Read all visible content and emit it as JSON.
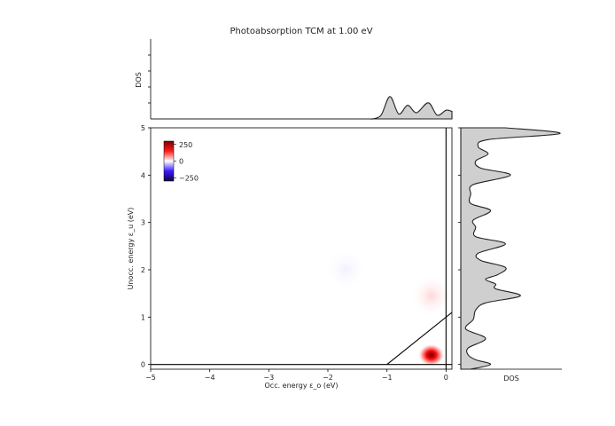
{
  "chart_data": {
    "type": "heatmap",
    "title": "Photoabsorption TCM at 1.00 eV",
    "xlabel": "Occ. energy ε_o (eV)",
    "ylabel": "Unocc. energy ε_u (eV)",
    "xlim": [
      -5,
      0.1
    ],
    "ylim": [
      -0.1,
      5.0
    ],
    "x_ticks": [
      "−5",
      "−4",
      "−3",
      "−2",
      "−1",
      "0"
    ],
    "y_ticks": [
      "0",
      "1",
      "2",
      "3",
      "4",
      "5"
    ],
    "x_tick_values": [
      -5,
      -4,
      -3,
      -2,
      -1,
      0
    ],
    "y_tick_values": [
      0,
      1,
      2,
      3,
      4,
      5
    ],
    "colorbar": {
      "ticks": [
        "250",
        "0",
        "−250"
      ],
      "values": [
        250,
        0,
        -250
      ]
    },
    "peaks": [
      {
        "x": -0.25,
        "y": 0.2,
        "value": 300
      },
      {
        "x": -0.25,
        "y": 1.45,
        "value": 20
      },
      {
        "x": -1.7,
        "y": 2.0,
        "value": -8
      }
    ],
    "fermi_level": 0.0,
    "transition_energy_line": 1.0,
    "top_panel": {
      "ylabel": "DOS",
      "occupied_dos": [
        [
          -1.25,
          0.0
        ],
        [
          -1.1,
          0.15
        ],
        [
          -0.95,
          0.9
        ],
        [
          -0.8,
          0.2
        ],
        [
          -0.65,
          0.55
        ],
        [
          -0.5,
          0.25
        ],
        [
          -0.3,
          0.65
        ],
        [
          -0.15,
          0.15
        ],
        [
          0.0,
          0.35
        ],
        [
          0.1,
          0.3
        ]
      ]
    },
    "right_panel": {
      "xlabel": "DOS",
      "unoccupied_dos": [
        [
          -0.1,
          0.2
        ],
        [
          0.0,
          0.6
        ],
        [
          0.1,
          0.3
        ],
        [
          0.2,
          0.15
        ],
        [
          0.35,
          0.15
        ],
        [
          0.55,
          0.5
        ],
        [
          0.75,
          0.1
        ],
        [
          0.95,
          0.25
        ],
        [
          1.15,
          0.3
        ],
        [
          1.3,
          0.5
        ],
        [
          1.45,
          1.2
        ],
        [
          1.6,
          0.7
        ],
        [
          1.7,
          0.7
        ],
        [
          1.8,
          0.5
        ],
        [
          1.9,
          0.75
        ],
        [
          2.05,
          0.9
        ],
        [
          2.2,
          0.4
        ],
        [
          2.35,
          0.35
        ],
        [
          2.55,
          0.9
        ],
        [
          2.7,
          0.3
        ],
        [
          2.9,
          0.3
        ],
        [
          3.05,
          0.25
        ],
        [
          3.25,
          0.6
        ],
        [
          3.4,
          0.2
        ],
        [
          3.6,
          0.2
        ],
        [
          3.8,
          0.25
        ],
        [
          4.0,
          1.0
        ],
        [
          4.15,
          0.4
        ],
        [
          4.3,
          0.3
        ],
        [
          4.45,
          0.55
        ],
        [
          4.6,
          0.35
        ],
        [
          4.75,
          0.55
        ],
        [
          4.88,
          2.0
        ],
        [
          5.0,
          0.9
        ]
      ]
    }
  }
}
